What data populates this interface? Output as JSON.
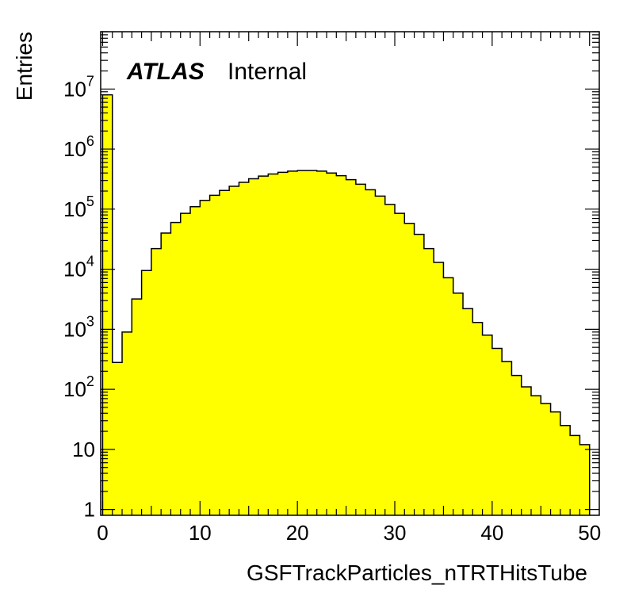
{
  "chart_data": {
    "type": "bar",
    "histogram": true,
    "xlabel": "GSFTrackParticles_nTRTHitsTube",
    "ylabel": "Entries",
    "xlim": [
      -0.2,
      51
    ],
    "ylim": [
      0.8,
      90000000
    ],
    "ylog": true,
    "bin_width": 1,
    "bin_edges_start": 0,
    "values": [
      8000000,
      280,
      900,
      3200,
      9500,
      22000,
      40000,
      60000,
      85000,
      110000,
      140000,
      170000,
      205000,
      240000,
      280000,
      320000,
      355000,
      385000,
      410000,
      430000,
      440000,
      440000,
      430000,
      400000,
      360000,
      310000,
      260000,
      210000,
      165000,
      120000,
      85000,
      58000,
      38000,
      22000,
      13000,
      7200,
      4000,
      2200,
      1300,
      800,
      480,
      290,
      170,
      110,
      78,
      58,
      42,
      25,
      17,
      12
    ],
    "fill_color": "#ffff00",
    "x_ticks": [
      {
        "value": 0,
        "label": "0"
      },
      {
        "value": 10,
        "label": "10"
      },
      {
        "value": 20,
        "label": "20"
      },
      {
        "value": 30,
        "label": "30"
      },
      {
        "value": 40,
        "label": "40"
      },
      {
        "value": 50,
        "label": "50"
      }
    ],
    "y_ticks": [
      {
        "value": 1,
        "base": "1",
        "exp": ""
      },
      {
        "value": 10,
        "base": "10",
        "exp": ""
      },
      {
        "value": 100,
        "base": "10",
        "exp": "2"
      },
      {
        "value": 1000,
        "base": "10",
        "exp": "3"
      },
      {
        "value": 10000,
        "base": "10",
        "exp": "4"
      },
      {
        "value": 100000,
        "base": "10",
        "exp": "5"
      },
      {
        "value": 1000000,
        "base": "10",
        "exp": "6"
      },
      {
        "value": 10000000,
        "base": "10",
        "exp": "7"
      }
    ],
    "annotation": {
      "experiment": "ATLAS",
      "status": "Internal"
    }
  }
}
